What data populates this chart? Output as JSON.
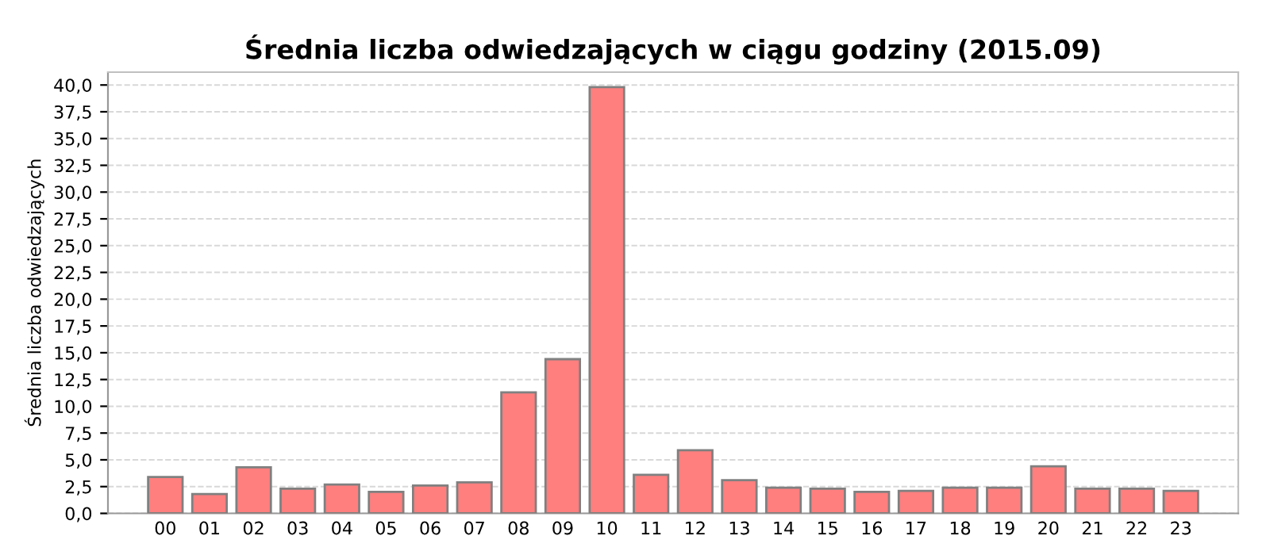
{
  "chart_data": {
    "type": "bar",
    "title": "Średnia liczba odwiedzających w ciągu godziny (2015.09)",
    "ylabel": "Średnia liczba odwiedzających",
    "categories": [
      "00",
      "01",
      "02",
      "03",
      "04",
      "05",
      "06",
      "07",
      "08",
      "09",
      "10",
      "11",
      "12",
      "13",
      "14",
      "15",
      "16",
      "17",
      "18",
      "19",
      "20",
      "21",
      "22",
      "23"
    ],
    "values": [
      3.4,
      1.8,
      4.3,
      2.3,
      2.7,
      2.0,
      2.6,
      2.9,
      11.3,
      14.4,
      39.8,
      3.6,
      5.9,
      3.1,
      2.4,
      2.3,
      2.0,
      2.1,
      2.4,
      2.4,
      4.4,
      2.3,
      2.3,
      2.1
    ],
    "color": "#ff7f7f",
    "ylim": [
      0,
      41.2
    ],
    "yticks": [
      {
        "value": 0,
        "label": "0,0"
      },
      {
        "value": 2.5,
        "label": "2,5"
      },
      {
        "value": 5,
        "label": "5,0"
      },
      {
        "value": 7.5,
        "label": "7,5"
      },
      {
        "value": 10,
        "label": "10,0"
      },
      {
        "value": 12.5,
        "label": "12,5"
      },
      {
        "value": 15,
        "label": "15,0"
      },
      {
        "value": 17.5,
        "label": "17,5"
      },
      {
        "value": 20,
        "label": "20,0"
      },
      {
        "value": 22.5,
        "label": "22,5"
      },
      {
        "value": 25,
        "label": "25,0"
      },
      {
        "value": 27.5,
        "label": "27,5"
      },
      {
        "value": 30,
        "label": "30,0"
      },
      {
        "value": 32.5,
        "label": "32,5"
      },
      {
        "value": 35,
        "label": "35,0"
      },
      {
        "value": 37.5,
        "label": "37,5"
      },
      {
        "value": 40,
        "label": "40,0"
      }
    ],
    "grid": "y",
    "legend": false
  }
}
